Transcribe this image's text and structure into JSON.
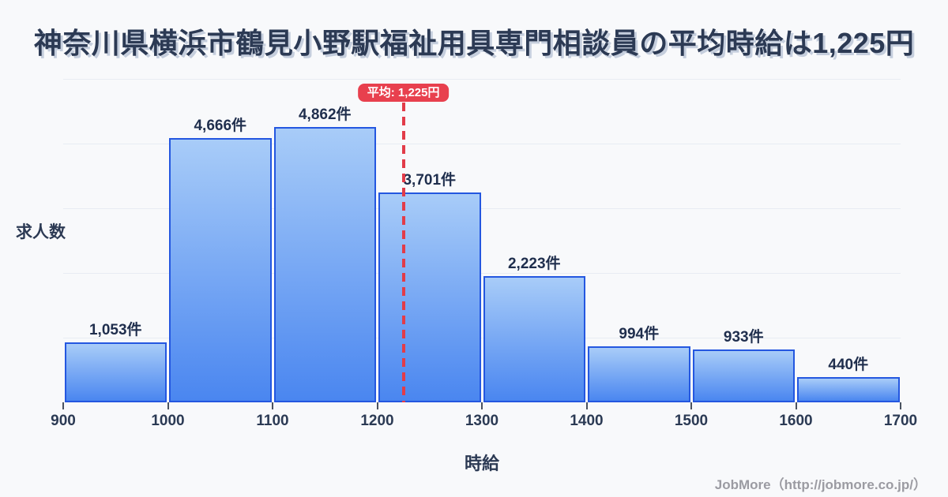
{
  "title": {
    "text": "神奈川県横浜市鶴見小野駅福祉用具専門相談員の平均時給は1,225円"
  },
  "chart_data": {
    "type": "bar",
    "subtype": "histogram",
    "title": "神奈川県横浜市鶴見小野駅福祉用具専門相談員の平均時給は1,225円",
    "xlabel": "時給",
    "ylabel": "求人数",
    "bin_edges": [
      900,
      1000,
      1100,
      1200,
      1300,
      1400,
      1500,
      1600,
      1700
    ],
    "x_tick_labels": [
      "900",
      "1000",
      "1100",
      "1200",
      "1300",
      "1400",
      "1500",
      "1600",
      "1700"
    ],
    "values": [
      1053,
      4666,
      4862,
      3701,
      2223,
      994,
      933,
      440
    ],
    "bar_labels": [
      "1,053件",
      "4,666件",
      "4,862件",
      "3,701件",
      "2,223件",
      "994件",
      "933件",
      "440件"
    ],
    "unit": "件",
    "ylim": [
      0,
      5711
    ],
    "grid": true,
    "gridline_count": 5,
    "legend": "none",
    "mean_annotation": {
      "value": 1225,
      "label": "平均: 1,225円",
      "badge_color": "#e8404e",
      "line_color": "#e23c49",
      "line_style": "dashed"
    },
    "bar_fill_top": "#a8ccf8",
    "bar_fill_bottom": "#4a86f0",
    "bar_border_color": "#2457e0"
  },
  "footer": {
    "credit": "JobMore（http://jobmore.co.jp/）"
  },
  "colors": {
    "background": "#f8f9fb",
    "title_text": "#2c3a54",
    "title_shadow": "#c5cedd",
    "grid": "#e8ecf3",
    "tick_label": "#2b3a54",
    "value_label": "#1f2e4d",
    "footer_text": "#9b9ba2"
  }
}
